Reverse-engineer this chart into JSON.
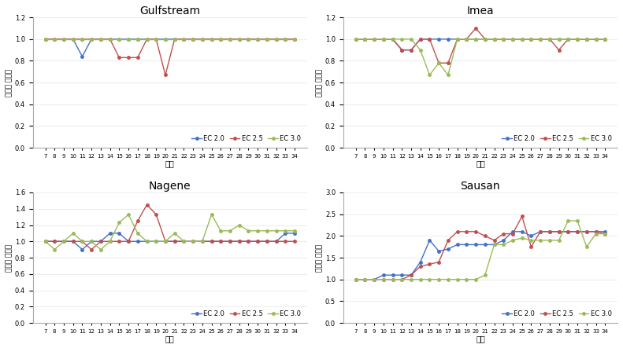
{
  "x_labels": [
    7,
    8,
    9,
    10,
    11,
    12,
    13,
    14,
    15,
    16,
    17,
    18,
    19,
    20,
    21,
    22,
    23,
    24,
    25,
    26,
    27,
    28,
    29,
    30,
    31,
    32,
    33,
    34
  ],
  "colors": {
    "ec20": "#4472C4",
    "ec25": "#C0504D",
    "ec30": "#9BBB59"
  },
  "Gulfstream": {
    "title": "Gulfstream",
    "ylabel": "마디별 착과수",
    "ylim": [
      0,
      1.2
    ],
    "yticks": [
      0,
      0.2,
      0.4,
      0.6,
      0.8,
      1.0,
      1.2
    ],
    "ec20": [
      1,
      1,
      1,
      1,
      0.84,
      1,
      1,
      1,
      1,
      1,
      1,
      1,
      1,
      1,
      1,
      1,
      1,
      1,
      1,
      1,
      1,
      1,
      1,
      1,
      1,
      1,
      1,
      1
    ],
    "ec25": [
      1,
      1,
      1,
      1,
      1,
      1,
      1,
      1,
      0.83,
      0.83,
      0.83,
      1,
      1,
      0.67,
      1,
      1,
      1,
      1,
      1,
      1,
      1,
      1,
      1,
      1,
      1,
      1,
      1,
      1
    ],
    "ec30": [
      1,
      1,
      1,
      1,
      1,
      1,
      1,
      1,
      1,
      1,
      1,
      1,
      1,
      1,
      1,
      1,
      1,
      1,
      1,
      1,
      1,
      1,
      1,
      1,
      1,
      1,
      1,
      1
    ]
  },
  "Imea": {
    "title": "Imea",
    "ylabel": "마디별 착과수",
    "ylim": [
      0,
      1.2
    ],
    "yticks": [
      0,
      0.2,
      0.4,
      0.6,
      0.8,
      1.0,
      1.2
    ],
    "ec20": [
      1,
      1,
      1,
      1,
      1,
      0.9,
      0.9,
      1,
      1,
      1,
      1,
      1,
      1,
      1,
      1,
      1,
      1,
      1,
      1,
      1,
      1,
      1,
      1,
      1,
      1,
      1,
      1,
      1
    ],
    "ec25": [
      1,
      1,
      1,
      1,
      1,
      0.9,
      0.9,
      1,
      1,
      0.78,
      0.78,
      1,
      1,
      1.1,
      1,
      1,
      1,
      1,
      1,
      1,
      1,
      1,
      0.9,
      1,
      1,
      1,
      1,
      1
    ],
    "ec30": [
      1,
      1,
      1,
      1,
      1,
      1,
      1,
      0.9,
      0.67,
      0.78,
      0.67,
      1,
      1,
      1,
      1,
      1,
      1,
      1,
      1,
      1,
      1,
      1,
      1,
      1,
      1,
      1,
      1,
      1
    ]
  },
  "Nagene": {
    "title": "Nagene",
    "ylabel": "마디별 착과수",
    "ylim": [
      0,
      1.6
    ],
    "yticks": [
      0,
      0.2,
      0.4,
      0.6,
      0.8,
      1.0,
      1.2,
      1.4,
      1.6
    ],
    "ec20": [
      1,
      1,
      1,
      1,
      0.9,
      1,
      1,
      1.1,
      1.1,
      1,
      1,
      1,
      1,
      1,
      1,
      1,
      1,
      1,
      1,
      1,
      1,
      1,
      1,
      1,
      1,
      1,
      1.1,
      1.1
    ],
    "ec25": [
      1,
      1,
      1,
      1,
      1,
      0.9,
      1,
      1,
      1,
      1,
      1.25,
      1.45,
      1.33,
      1,
      1,
      1,
      1,
      1,
      1,
      1,
      1,
      1,
      1,
      1,
      1,
      1,
      1,
      1
    ],
    "ec30": [
      1,
      0.9,
      1,
      1.1,
      1,
      1,
      0.9,
      1,
      1.23,
      1.33,
      1.1,
      1,
      1,
      1,
      1.1,
      1,
      1,
      1,
      1.33,
      1.13,
      1.13,
      1.2,
      1.13,
      1.13,
      1.13,
      1.13,
      1.13,
      1.13
    ]
  },
  "Sausan": {
    "title": "Sausan",
    "ylabel": "마디별 착과수",
    "ylim": [
      0,
      3
    ],
    "yticks": [
      0,
      0.5,
      1.0,
      1.5,
      2.0,
      2.5,
      3.0
    ],
    "ec20": [
      1,
      1,
      1,
      1.1,
      1.1,
      1.1,
      1.1,
      1.4,
      1.9,
      1.65,
      1.7,
      1.8,
      1.8,
      1.8,
      1.8,
      1.8,
      1.9,
      2.1,
      2.1,
      2.0,
      2.1,
      2.1,
      2.1,
      2.1,
      2.1,
      2.1,
      2.1,
      2.1
    ],
    "ec25": [
      1,
      1,
      1,
      1,
      1,
      1,
      1.1,
      1.3,
      1.35,
      1.4,
      1.9,
      2.1,
      2.1,
      2.1,
      2.0,
      1.9,
      2.05,
      2.05,
      2.45,
      1.75,
      2.1,
      2.1,
      2.1,
      2.1,
      2.1,
      2.1,
      2.1,
      2.05
    ],
    "ec30": [
      1,
      1,
      1,
      1,
      1,
      1,
      1,
      1,
      1,
      1,
      1,
      1,
      1,
      1,
      1.1,
      1.8,
      1.8,
      1.9,
      1.95,
      1.9,
      1.9,
      1.9,
      1.9,
      2.35,
      2.35,
      1.75,
      2.05,
      2.05
    ]
  },
  "legend": [
    "EC 2.0",
    "EC 2.5",
    "EC 3.0"
  ]
}
